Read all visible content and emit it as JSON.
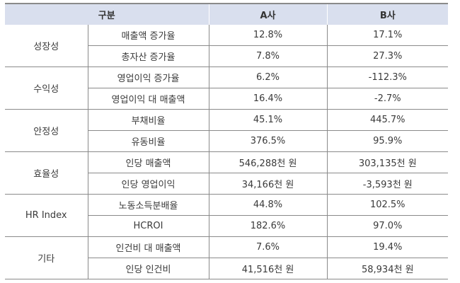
{
  "table": {
    "headers": [
      "구분",
      "A사",
      "B사"
    ],
    "groups": [
      {
        "category": "성장성",
        "rows": [
          {
            "metric": "매출액 증가율",
            "a": "12.8%",
            "b": "17.1%"
          },
          {
            "metric": "총자산 증가율",
            "a": "7.8%",
            "b": "27.3%"
          }
        ]
      },
      {
        "category": "수익성",
        "rows": [
          {
            "metric": "영업이익 증가율",
            "a": "6.2%",
            "b": "-112.3%"
          },
          {
            "metric": "영업이익 대 매출액",
            "a": "16.4%",
            "b": "-2.7%"
          }
        ]
      },
      {
        "category": "안정성",
        "rows": [
          {
            "metric": "부채비율",
            "a": "45.1%",
            "b": "445.7%"
          },
          {
            "metric": "유동비율",
            "a": "376.5%",
            "b": "95.9%"
          }
        ]
      },
      {
        "category": "효율성",
        "rows": [
          {
            "metric": "인당 매출액",
            "a": "546,288천 원",
            "b": "303,135천 원"
          },
          {
            "metric": "인당 영업이익",
            "a": "34,166천 원",
            "b": "-3,593천 원"
          }
        ]
      },
      {
        "category": "HR Index",
        "rows": [
          {
            "metric": "노동소득분배율",
            "a": "44.8%",
            "b": "102.5%"
          },
          {
            "metric": "HCROI",
            "a": "182.6%",
            "b": "97.0%"
          }
        ]
      },
      {
        "category": "기타",
        "rows": [
          {
            "metric": "인건비 대 매출액",
            "a": "7.6%",
            "b": "19.4%"
          },
          {
            "metric": "인당 인건비",
            "a": "41,516천 원",
            "b": "58,934천 원"
          }
        ]
      }
    ]
  },
  "colors": {
    "header_bg": "#d9dfee",
    "border": "#8a8a8a",
    "text": "#333333"
  }
}
